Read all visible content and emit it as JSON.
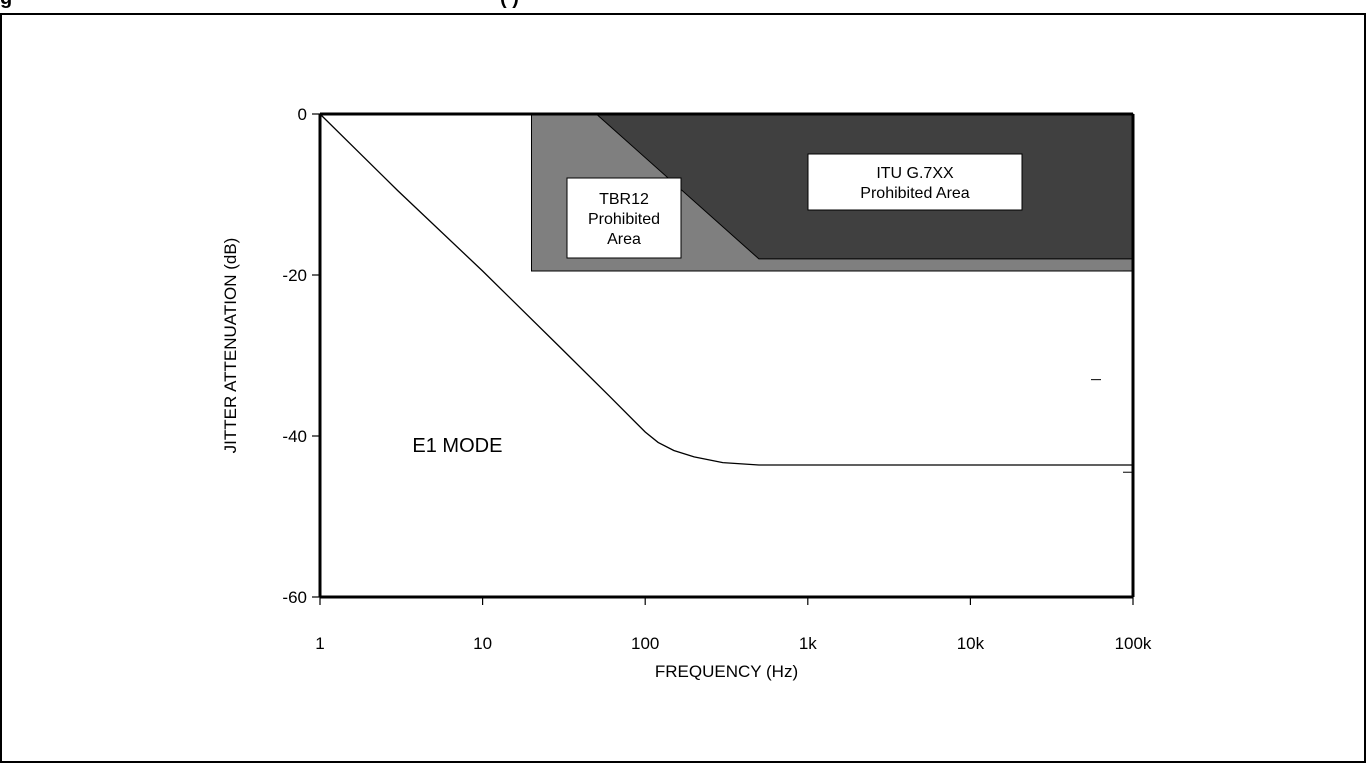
{
  "page": {
    "heading_fragment": "g",
    "heading_fragment_right": "(         )"
  },
  "chart_data": {
    "type": "line",
    "title": "",
    "xlabel": "FREQUENCY (Hz)",
    "ylabel": "JITTER ATTENUATION (dB)",
    "x_scale": "log",
    "xlim": [
      1,
      100000
    ],
    "ylim": [
      -60,
      0
    ],
    "x_ticks": [
      1,
      10,
      100,
      1000,
      10000,
      100000
    ],
    "x_tick_labels": [
      "1",
      "10",
      "100",
      "1k",
      "10k",
      "100k"
    ],
    "y_ticks": [
      0,
      -20,
      -40,
      -60
    ],
    "y_tick_labels": [
      "0",
      "-20",
      "-40",
      "-60"
    ],
    "grid": false,
    "legend": "none",
    "colors": {
      "tbr12_region": "#7f7f7f",
      "itu_region": "#404040",
      "curve": "#000000",
      "axes": "#000000"
    },
    "series": [
      {
        "x": [
          1,
          3,
          10,
          30,
          60,
          100,
          120,
          150,
          200,
          300,
          500,
          1000,
          10000,
          100000
        ],
        "y": [
          0,
          -9.5,
          -19.5,
          -29,
          -35,
          -39.5,
          -40.8,
          -41.8,
          -42.6,
          -43.3,
          -43.6,
          -43.6,
          -43.6,
          -43.6
        ]
      }
    ],
    "regions": [
      {
        "label": "TBR12\nProhibited\nArea",
        "polygon": [
          [
            20,
            0
          ],
          [
            100000,
            0
          ],
          [
            100000,
            -19.5
          ],
          [
            20,
            -19.5
          ]
        ]
      },
      {
        "label": "ITU G.7XX\nProhibited Area",
        "polygon": [
          [
            50,
            0
          ],
          [
            100000,
            0
          ],
          [
            100000,
            -18
          ],
          [
            500,
            -18
          ]
        ]
      }
    ],
    "annotations": [
      {
        "text": "E1 MODE",
        "x": 7,
        "y": -41
      }
    ]
  }
}
